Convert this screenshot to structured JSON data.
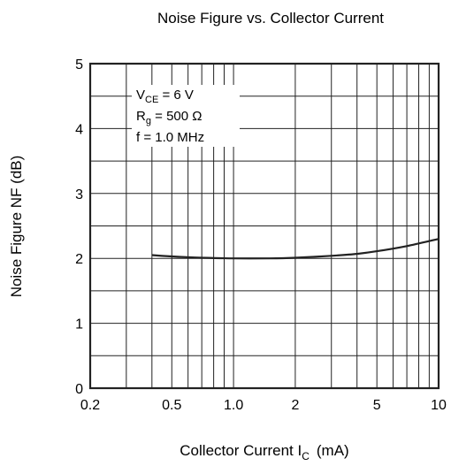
{
  "chart_data": {
    "type": "line",
    "title": "Noise Figure vs. Collector Current",
    "xlabel": {
      "main": "Collector Current I",
      "sub": "C",
      "unit": "(mA)"
    },
    "ylabel": "Noise Figure NF (dB)",
    "xscale": "log",
    "xlim": [
      0.2,
      10
    ],
    "ylim": [
      0,
      5
    ],
    "grid": true,
    "x_tick_labels": [
      "0.2",
      "0.5",
      "1.0",
      "2",
      "5",
      "10"
    ],
    "x_tick_values": [
      0.2,
      0.5,
      1.0,
      2,
      5,
      10
    ],
    "y_tick_labels": [
      "0",
      "1",
      "2",
      "3",
      "4",
      "5"
    ],
    "y_tick_values": [
      0,
      1,
      2,
      3,
      4,
      5
    ],
    "annotations": [
      {
        "main": "V",
        "sub": "CE",
        "rest": " = 6 V"
      },
      {
        "main": "R",
        "sub": "g",
        "rest": " = 500 Ω"
      },
      {
        "main": "f = 1.0 MHz",
        "sub": "",
        "rest": ""
      }
    ],
    "annotation_position": "top-left",
    "series": [
      {
        "x": [
          0.4,
          0.5,
          0.7,
          1.0,
          1.5,
          2.0,
          3.0,
          4.0,
          5.0,
          7.0,
          10.0
        ],
        "y": [
          2.05,
          2.03,
          2.01,
          2.0,
          2.0,
          2.01,
          2.04,
          2.07,
          2.11,
          2.19,
          2.3
        ]
      }
    ],
    "colors": {
      "line": "#222222",
      "grid": "#222222",
      "background": "#ffffff"
    }
  }
}
